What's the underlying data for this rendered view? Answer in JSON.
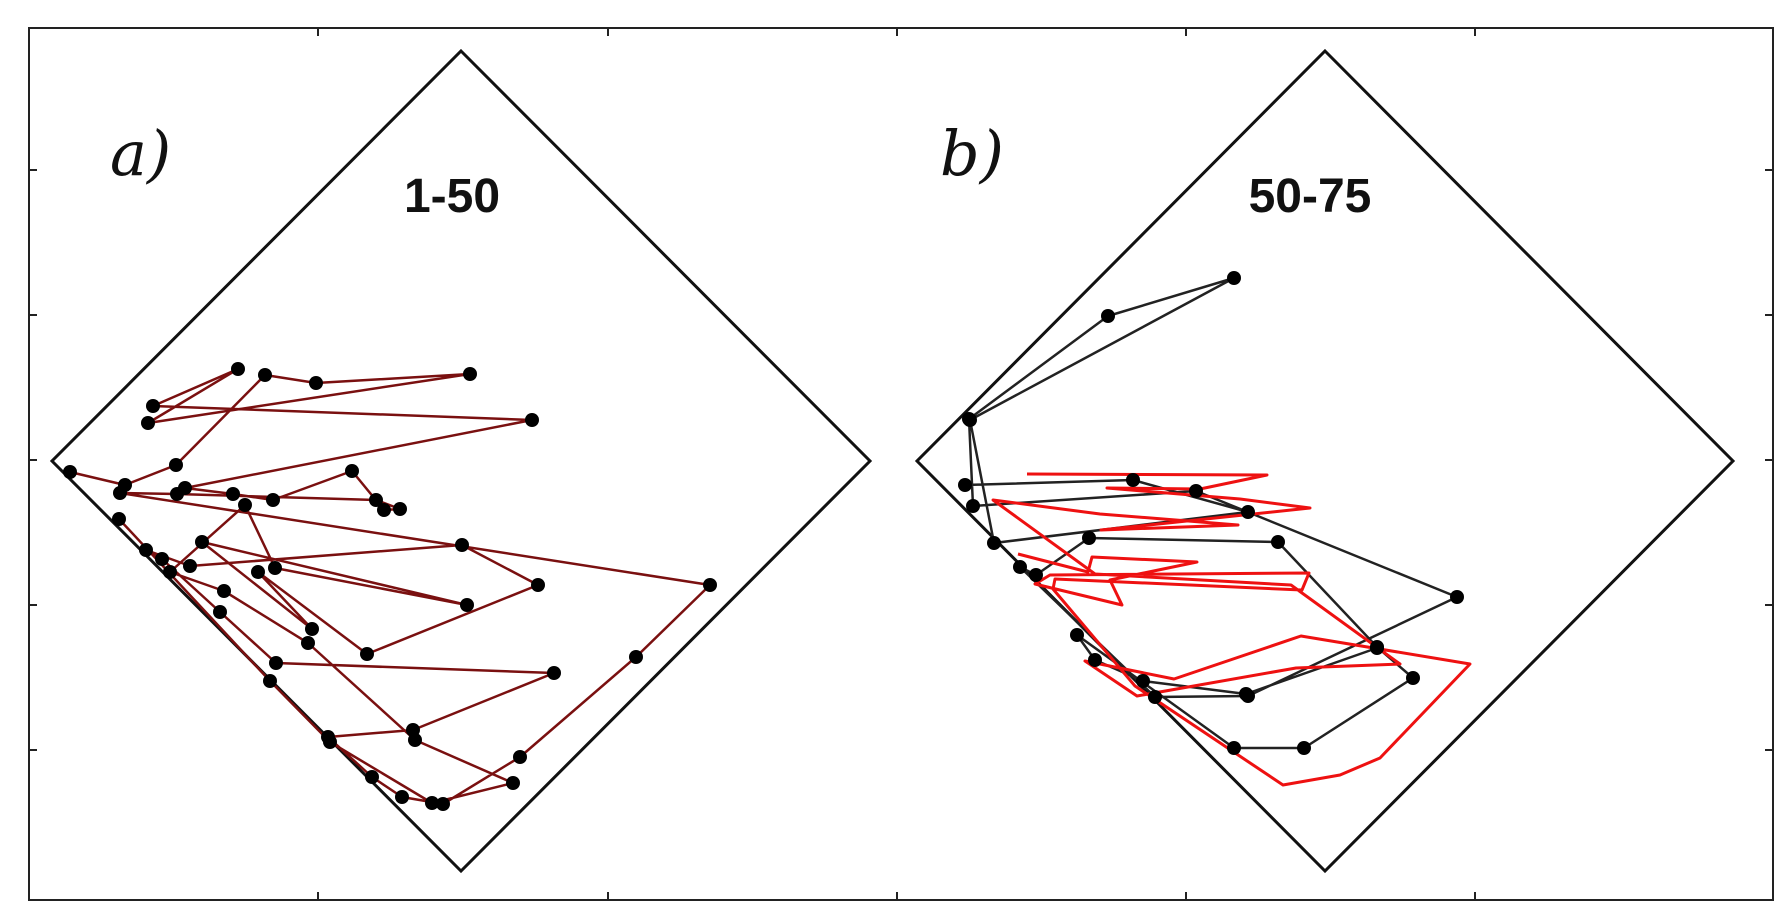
{
  "figure": {
    "panels": [
      {
        "id": "a",
        "letter": "a)",
        "title": "1-50",
        "series": [
          {
            "kind": "black-markers-dark-red-line",
            "line_color": "#7a1010",
            "marker_color": "#000000",
            "points": [
              [
                70,
                472
              ],
              [
                125,
                485
              ],
              [
                176,
                465
              ],
              [
                265,
                375
              ],
              [
                316,
                383
              ],
              [
                470,
                374
              ],
              [
                148,
                423
              ],
              [
                238,
                369
              ],
              [
                153,
                406
              ],
              [
                532,
                420
              ],
              [
                185,
                488
              ],
              [
                233,
                494
              ],
              [
                273,
                500
              ],
              [
                352,
                471
              ],
              [
                384,
                510
              ],
              [
                400,
                509
              ],
              [
                376,
                500
              ],
              [
                177,
                494
              ],
              [
                120,
                493
              ],
              [
                710,
                585
              ],
              [
                636,
                657
              ],
              [
                520,
                757
              ],
              [
                443,
                804
              ],
              [
                402,
                797
              ],
              [
                372,
                777
              ],
              [
                328,
                737
              ],
              [
                413,
                730
              ],
              [
                554,
                673
              ],
              [
                276,
                663
              ],
              [
                220,
                612
              ],
              [
                162,
                559
              ],
              [
                146,
                550
              ],
              [
                190,
                566
              ],
              [
                462,
                545
              ],
              [
                538,
                585
              ],
              [
                367,
                654
              ],
              [
                258,
                572
              ],
              [
                312,
                629
              ],
              [
                202,
                542
              ],
              [
                467,
                605
              ],
              [
                275,
                568
              ],
              [
                245,
                505
              ],
              [
                170,
                572
              ],
              [
                224,
                591
              ],
              [
                308,
                643
              ],
              [
                415,
                740
              ],
              [
                513,
                783
              ],
              [
                432,
                803
              ],
              [
                330,
                742
              ],
              [
                270,
                681
              ],
              [
                119,
                519
              ]
            ]
          }
        ]
      },
      {
        "id": "b",
        "letter": "b)",
        "title": "50-75",
        "series": [
          {
            "kind": "black-markers-black-line",
            "line_color": "#222222",
            "marker_color": "#000000",
            "points": [
              [
                965,
                485
              ],
              [
                1133,
                480
              ],
              [
                1248,
                512
              ],
              [
                994,
                543
              ],
              [
                970,
                420
              ],
              [
                1234,
                278
              ],
              [
                1108,
                316
              ],
              [
                969,
                419
              ],
              [
                973,
                506
              ],
              [
                1196,
                491
              ],
              [
                1457,
                597
              ],
              [
                1248,
                696
              ],
              [
                1155,
                697
              ],
              [
                1020,
                567
              ],
              [
                1036,
                575
              ],
              [
                1089,
                538
              ],
              [
                1278,
                542
              ],
              [
                1377,
                647
              ],
              [
                1413,
                678
              ],
              [
                1304,
                748
              ],
              [
                1234,
                748
              ],
              [
                1077,
                635
              ],
              [
                1095,
                660
              ],
              [
                1143,
                681
              ],
              [
                1246,
                694
              ],
              [
                1377,
                648
              ]
            ]
          },
          {
            "kind": "red-line-no-markers",
            "line_color": "#ee1111",
            "marker_color": "none",
            "points": [
              [
                1027,
                474
              ],
              [
                1267,
                475
              ],
              [
                1200,
                489
              ],
              [
                1107,
                488
              ],
              [
                1240,
                499
              ],
              [
                1310,
                508
              ],
              [
                1101,
                530
              ],
              [
                1238,
                525
              ],
              [
                1100,
                514
              ],
              [
                993,
                500
              ],
              [
                1095,
                574
              ],
              [
                1291,
                585
              ],
              [
                1400,
                664
              ],
              [
                1296,
                668
              ],
              [
                1137,
                696
              ],
              [
                1085,
                661
              ],
              [
                1174,
                679
              ],
              [
                1301,
                636
              ],
              [
                1470,
                664
              ],
              [
                1380,
                758
              ],
              [
                1340,
                775
              ],
              [
                1283,
                785
              ],
              [
                1135,
                686
              ],
              [
                1053,
                589
              ],
              [
                1055,
                579
              ],
              [
                1302,
                590
              ],
              [
                1309,
                573
              ],
              [
                1050,
                575
              ],
              [
                1035,
                584
              ],
              [
                1122,
                605
              ],
              [
                1110,
                580
              ],
              [
                1197,
                562
              ],
              [
                1092,
                557
              ],
              [
                1088,
                572
              ],
              [
                1018,
                554
              ]
            ]
          }
        ]
      }
    ]
  }
}
